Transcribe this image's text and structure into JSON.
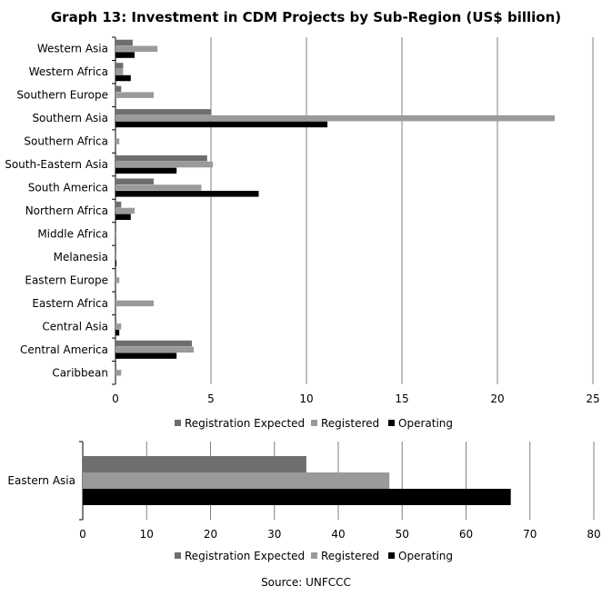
{
  "title": "Graph 13: Investment in CDM Projects by Sub-Region (US$ billion)",
  "source": "Source: UNFCCC",
  "colors": {
    "Registration Expected": "#6e6e6e",
    "Registered": "#9a9a9a",
    "Operating": "#000000",
    "grid": "#808080",
    "axis": "#000000"
  },
  "chart_data": [
    {
      "type": "bar",
      "orientation": "horizontal",
      "categories": [
        "Western Asia",
        "Western Africa",
        "Southern Europe",
        "Southern Asia",
        "Southern Africa",
        "South-Eastern Asia",
        "South America",
        "Northern Africa",
        "Middle Africa",
        "Melanesia",
        "Eastern Europe",
        "Eastern Africa",
        "Central Asia",
        "Central America",
        "Caribbean"
      ],
      "series": [
        {
          "name": "Registration Expected",
          "values": [
            0.9,
            0.4,
            0.3,
            5.0,
            0.0,
            4.8,
            2.0,
            0.3,
            0.0,
            0.0,
            0.0,
            0.05,
            0.05,
            4.0,
            0.05
          ]
        },
        {
          "name": "Registered",
          "values": [
            2.2,
            0.4,
            2.0,
            23.0,
            0.2,
            5.1,
            4.5,
            1.0,
            0.05,
            0.05,
            0.2,
            2.0,
            0.3,
            4.1,
            0.3
          ]
        },
        {
          "name": "Operating",
          "values": [
            1.0,
            0.8,
            0.0,
            11.1,
            0.0,
            3.2,
            7.5,
            0.8,
            0.0,
            0.05,
            0.0,
            0.0,
            0.2,
            3.2,
            0.0
          ]
        }
      ],
      "xlim": [
        0,
        25
      ],
      "xticks": [
        "0",
        "5",
        "10",
        "15",
        "20",
        "25"
      ],
      "grid": true,
      "legend": [
        "Registration Expected",
        "Registered",
        "Operating"
      ],
      "legend_position": "bottom"
    },
    {
      "type": "bar",
      "orientation": "horizontal",
      "categories": [
        "Eastern Asia"
      ],
      "series": [
        {
          "name": "Registration Expected",
          "values": [
            35
          ]
        },
        {
          "name": "Registered",
          "values": [
            48
          ]
        },
        {
          "name": "Operating",
          "values": [
            67
          ]
        }
      ],
      "xlim": [
        0,
        80
      ],
      "xticks": [
        "0",
        "10",
        "20",
        "30",
        "40",
        "50",
        "60",
        "70",
        "80"
      ],
      "grid": true,
      "legend": [
        "Registration Expected",
        "Registered",
        "Operating"
      ],
      "legend_position": "bottom"
    }
  ]
}
